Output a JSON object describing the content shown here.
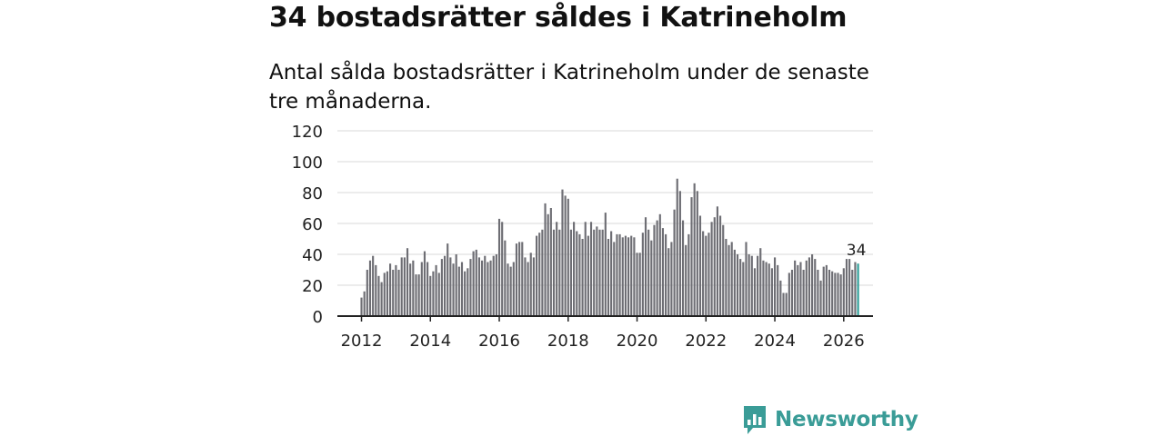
{
  "header": {
    "title": "34 bostadsrätter såldes i Katrineholm",
    "subtitle": "Antal sålda bostadsrätter i Katrineholm under de senaste tre månaderna."
  },
  "brand": {
    "name": "Newsworthy",
    "color": "#3a9c97"
  },
  "colors": {
    "bar": "#6e6e74",
    "highlight": "#2e9e98",
    "grid": "#d9d9d9",
    "axis": "#222222"
  },
  "chart_data": {
    "type": "bar",
    "title": "34 bostadsrätter såldes i Katrineholm",
    "subtitle": "Antal sålda bostadsrätter i Katrineholm under de senaste tre månaderna.",
    "xlabel": "",
    "ylabel": "",
    "ylim": [
      0,
      120
    ],
    "yticks": [
      0,
      20,
      40,
      60,
      80,
      100,
      120
    ],
    "xlim": [
      2011.3,
      2026.85
    ],
    "xticks": [
      2012,
      2014,
      2016,
      2018,
      2020,
      2022,
      2024,
      2026
    ],
    "grid": true,
    "start": "2012-01",
    "frequency": "monthly",
    "highlight_label": "34",
    "values": [
      12,
      16,
      30,
      36,
      39,
      33,
      26,
      22,
      28,
      29,
      34,
      30,
      33,
      30,
      38,
      38,
      44,
      34,
      36,
      27,
      27,
      35,
      42,
      35,
      26,
      29,
      33,
      28,
      37,
      39,
      47,
      38,
      34,
      40,
      32,
      35,
      29,
      31,
      37,
      42,
      43,
      38,
      36,
      39,
      35,
      36,
      39,
      40,
      63,
      61,
      49,
      34,
      32,
      35,
      47,
      48,
      48,
      38,
      35,
      41,
      38,
      52,
      54,
      56,
      73,
      66,
      70,
      56,
      61,
      56,
      82,
      78,
      76,
      56,
      61,
      55,
      53,
      50,
      61,
      52,
      61,
      56,
      58,
      56,
      56,
      67,
      50,
      55,
      48,
      53,
      53,
      51,
      52,
      51,
      52,
      51,
      41,
      41,
      54,
      64,
      56,
      49,
      59,
      62,
      66,
      57,
      53,
      44,
      48,
      69,
      89,
      81,
      62,
      46,
      53,
      77,
      86,
      81,
      65,
      55,
      52,
      54,
      61,
      64,
      71,
      65,
      59,
      50,
      46,
      48,
      43,
      40,
      37,
      35,
      48,
      40,
      39,
      31,
      39,
      44,
      36,
      35,
      34,
      31,
      38,
      33,
      23,
      15,
      15,
      28,
      30,
      36,
      33,
      35,
      30,
      36,
      38,
      40,
      37,
      30,
      23,
      32,
      33,
      30,
      29,
      28,
      28,
      27,
      31,
      37,
      37,
      30,
      35,
      34
    ]
  }
}
